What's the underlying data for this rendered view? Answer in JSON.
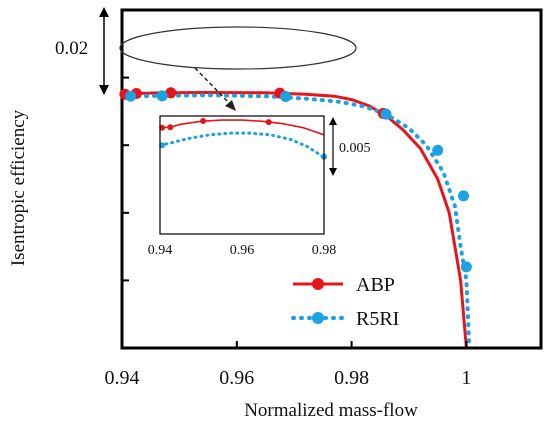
{
  "chart_data": {
    "type": "line",
    "xlabel": "Normalized mass-flow",
    "ylabel": "Isentropic efficiency",
    "xlim": [
      0.94,
      1.013
    ],
    "ylim": [
      0.0,
      1.0
    ],
    "x_ticks": [
      "0.94",
      "0.96",
      "0.98",
      "1"
    ],
    "x_tick_values": [
      0.94,
      0.96,
      0.98,
      1.0
    ],
    "y_tick_values": [
      0.0,
      0.2,
      0.4,
      0.6,
      0.8
    ],
    "scale_annotation": "0.02",
    "grid": false,
    "legend_position": "bottom-right",
    "series": [
      {
        "name": "ABP",
        "color": "#e8141b",
        "line_style": "solid",
        "marker": "circle",
        "curve_x": [
          0.94,
          0.9425,
          0.947,
          0.955,
          0.965,
          0.972,
          0.977,
          0.98,
          0.983,
          0.986,
          0.989,
          0.992,
          0.995,
          0.997,
          0.998,
          0.999,
          0.9995,
          1.0
        ],
        "curve_y": [
          0.75,
          0.753,
          0.755,
          0.756,
          0.755,
          0.751,
          0.745,
          0.735,
          0.717,
          0.688,
          0.645,
          0.59,
          0.5,
          0.4,
          0.3,
          0.2,
          0.1,
          0.0
        ],
        "x": [
          0.9405,
          0.9425,
          0.9485,
          0.9675,
          0.9855
        ],
        "y": [
          0.751,
          0.753,
          0.755,
          0.754,
          0.694
        ]
      },
      {
        "name": "R5RI",
        "color": "#1aa3e0",
        "line_style": "dotted",
        "marker": "circle",
        "curve_x": [
          0.94,
          0.945,
          0.955,
          0.965,
          0.972,
          0.978,
          0.982,
          0.986,
          0.99,
          0.993,
          0.996,
          0.998,
          0.999,
          1.0,
          1.0005
        ],
        "curve_y": [
          0.744,
          0.746,
          0.748,
          0.745,
          0.738,
          0.728,
          0.715,
          0.692,
          0.65,
          0.6,
          0.52,
          0.42,
          0.3,
          0.2,
          0.0
        ],
        "x": [
          0.9415,
          0.947,
          0.9685,
          0.986,
          0.995,
          0.9995,
          1.0
        ],
        "y": [
          0.745,
          0.746,
          0.744,
          0.692,
          0.585,
          0.45,
          0.24
        ]
      }
    ],
    "inset": {
      "x_ticks": [
        "0.94",
        "0.96",
        "0.98"
      ],
      "x_tick_values": [
        0.94,
        0.96,
        0.98
      ],
      "xlim": [
        0.94,
        0.98
      ],
      "scale_annotation": "0.005",
      "series": [
        {
          "name": "ABP",
          "curve_x": [
            0.94,
            0.9425,
            0.945,
            0.95,
            0.955,
            0.96,
            0.965,
            0.97,
            0.975,
            0.98
          ],
          "curve_y": [
            0.9,
            0.905,
            0.93,
            0.955,
            0.965,
            0.965,
            0.955,
            0.935,
            0.9,
            0.84
          ],
          "x": [
            0.9405,
            0.9425,
            0.9505,
            0.9665
          ],
          "y": [
            0.9,
            0.905,
            0.958,
            0.948
          ]
        },
        {
          "name": "R5RI",
          "curve_x": [
            0.94,
            0.943,
            0.947,
            0.952,
            0.957,
            0.962,
            0.967,
            0.972,
            0.976,
            0.98
          ],
          "curve_y": [
            0.75,
            0.775,
            0.81,
            0.84,
            0.855,
            0.855,
            0.84,
            0.8,
            0.74,
            0.65
          ],
          "x": [
            0.9405,
            0.98
          ],
          "y": [
            0.752,
            0.655
          ]
        }
      ]
    }
  }
}
